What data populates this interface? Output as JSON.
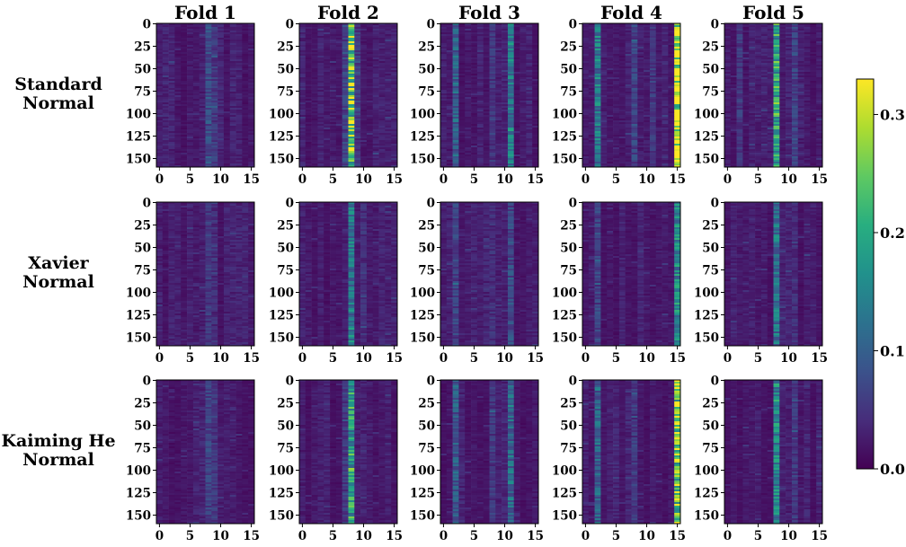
{
  "chart_data": {
    "type": "heatmap",
    "columns": [
      "Fold 1",
      "Fold 2",
      "Fold 3",
      "Fold 4",
      "Fold 5"
    ],
    "rows": [
      [
        "Standard",
        "Normal"
      ],
      [
        "Xavier",
        "Normal"
      ],
      [
        "Kaiming He",
        "Normal"
      ]
    ],
    "x_ticks": [
      "0",
      "5",
      "10",
      "15"
    ],
    "y_ticks": [
      "0",
      "25",
      "50",
      "75",
      "100",
      "125",
      "150"
    ],
    "x_range": [
      0,
      15
    ],
    "y_range": [
      0,
      160
    ],
    "colormap": "viridis",
    "colorbar": {
      "ticks": [
        "0.0",
        "0.1",
        "0.2",
        "0.3"
      ],
      "range": [
        0,
        0.33
      ]
    },
    "hotspots": [
      [
        {
          "cols": [
            [
              8,
              0.07
            ],
            [
              9,
              0.05
            ]
          ]
        },
        {
          "cols": [
            [
              8,
              0.24
            ],
            [
              7,
              0.06
            ],
            [
              9,
              0.05
            ]
          ]
        },
        {
          "cols": [
            [
              2,
              0.1
            ],
            [
              11,
              0.13
            ],
            [
              8,
              0.05
            ]
          ]
        },
        {
          "cols": [
            [
              15,
              0.32
            ],
            [
              2,
              0.13
            ],
            [
              8,
              0.06
            ],
            [
              11,
              0.05
            ]
          ]
        },
        {
          "cols": [
            [
              8,
              0.19
            ],
            [
              11,
              0.06
            ],
            [
              2,
              0.05
            ]
          ]
        }
      ],
      [
        {
          "cols": [
            [
              8,
              0.05
            ],
            [
              9,
              0.04
            ]
          ]
        },
        {
          "cols": [
            [
              8,
              0.13
            ],
            [
              10,
              0.04
            ]
          ]
        },
        {
          "cols": [
            [
              2,
              0.06
            ],
            [
              11,
              0.07
            ],
            [
              8,
              0.04
            ]
          ]
        },
        {
          "cols": [
            [
              15,
              0.15
            ],
            [
              2,
              0.06
            ]
          ]
        },
        {
          "cols": [
            [
              8,
              0.12
            ],
            [
              11,
              0.04
            ]
          ]
        }
      ],
      [
        {
          "cols": [
            [
              8,
              0.06
            ],
            [
              9,
              0.05
            ]
          ]
        },
        {
          "cols": [
            [
              8,
              0.18
            ],
            [
              7,
              0.05
            ]
          ]
        },
        {
          "cols": [
            [
              2,
              0.09
            ],
            [
              11,
              0.11
            ],
            [
              8,
              0.05
            ]
          ]
        },
        {
          "cols": [
            [
              15,
              0.25
            ],
            [
              2,
              0.1
            ],
            [
              8,
              0.05
            ]
          ]
        },
        {
          "cols": [
            [
              8,
              0.15
            ],
            [
              11,
              0.05
            ]
          ]
        }
      ]
    ]
  }
}
